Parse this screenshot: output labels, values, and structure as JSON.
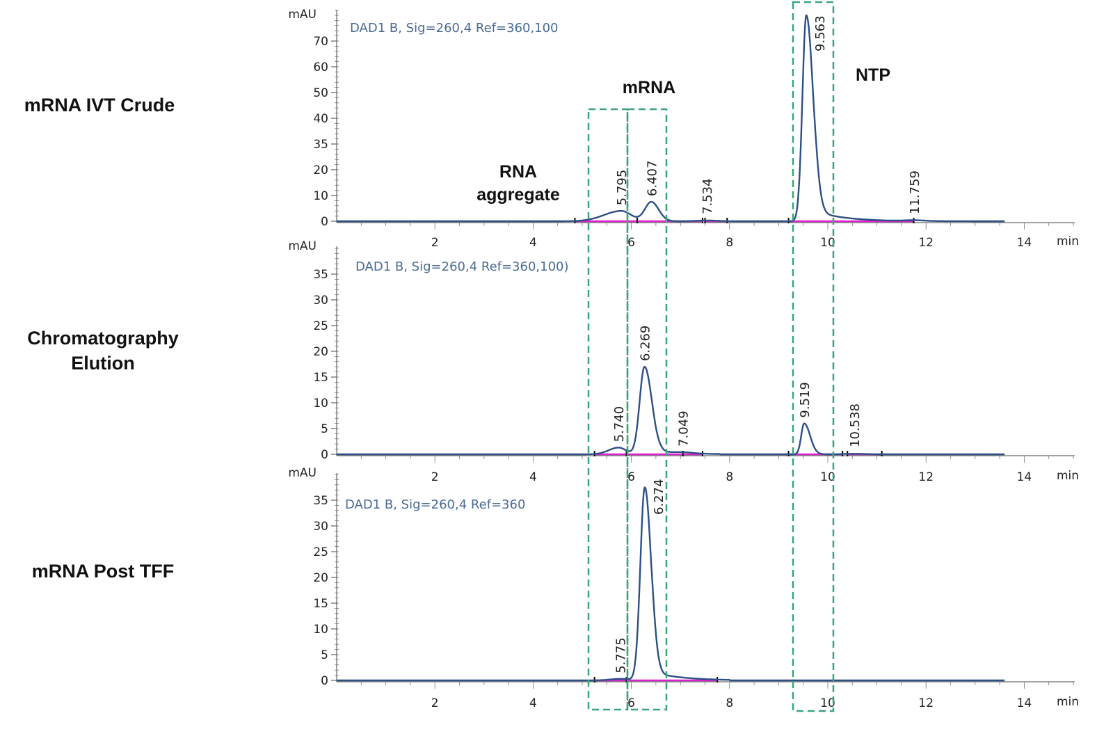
{
  "colors": {
    "trace": "#2c4f86",
    "baseline": "#e020d0",
    "box": "#3aa57a",
    "signal_text": "#4a6a96"
  },
  "annotations": {
    "rna_aggregate_1": "RNA",
    "rna_aggregate_2": "aggregate",
    "mrna": "mRNA",
    "ntp": "NTP"
  },
  "chart_data": [
    {
      "type": "line",
      "title": "mRNA IVT Crude",
      "signal": "DAD1 B, Sig=260,4 Ref=360,100",
      "ylabel": "mAU",
      "xlabel": "min",
      "xticks": [
        "2",
        "4",
        "6",
        "8",
        "10",
        "12",
        "14"
      ],
      "yticks": [
        "0",
        "10",
        "20",
        "35",
        "40",
        "50",
        "60",
        "70"
      ],
      "xlim": [
        0,
        15
      ],
      "peaks": [
        {
          "rt": 5.795,
          "height": 4,
          "sigma_left": 0.35,
          "sigma_right": 0.2
        },
        {
          "rt": 6.407,
          "height": 7.5,
          "sigma_left": 0.13,
          "sigma_right": 0.15
        },
        {
          "rt": 7.534,
          "height": 0.3,
          "sigma_left": 0.2,
          "sigma_right": 0.2
        },
        {
          "rt": 9.563,
          "height": 80,
          "sigma_left": 0.08,
          "sigma_right": 0.14
        },
        {
          "rt": 11.759,
          "height": 0.3,
          "sigma_left": 0.2,
          "sigma_right": 0.2
        }
      ],
      "tail": {
        "start": 9.7,
        "end": 13.6,
        "height": 4.5
      },
      "baselines": [
        [
          4.85,
          6.12
        ],
        [
          6.12,
          7.45
        ],
        [
          7.5,
          7.95
        ],
        [
          9.2,
          11.75
        ]
      ]
    },
    {
      "type": "line",
      "title": "Chromatography Elution",
      "signal": "DAD1 B, Sig=260,4 Ref=360,100)",
      "ylabel": "mAU",
      "xlabel": "min",
      "xticks": [
        "2",
        "4",
        "6",
        "8",
        "10",
        "12",
        "14"
      ],
      "yticks": [
        "0",
        "5",
        "10",
        "15",
        "20",
        "25",
        "30",
        "35"
      ],
      "xlim": [
        0,
        15
      ],
      "peaks": [
        {
          "rt": 5.74,
          "height": 1.3,
          "sigma_left": 0.2,
          "sigma_right": 0.15
        },
        {
          "rt": 6.269,
          "height": 17,
          "sigma_left": 0.1,
          "sigma_right": 0.15
        },
        {
          "rt": 7.049,
          "height": 0.2,
          "sigma_left": 0.2,
          "sigma_right": 0.2
        },
        {
          "rt": 9.519,
          "height": 6,
          "sigma_left": 0.06,
          "sigma_right": 0.12
        },
        {
          "rt": 10.538,
          "height": 0.1,
          "sigma_left": 0.2,
          "sigma_right": 0.2
        }
      ],
      "tail": {
        "start": 6.5,
        "end": 7.8,
        "height": 0.6
      },
      "baselines": [
        [
          5.25,
          5.9
        ],
        [
          5.9,
          7.05
        ],
        [
          7.05,
          7.45
        ],
        [
          9.2,
          10.3
        ],
        [
          10.4,
          11.1
        ]
      ]
    },
    {
      "type": "line",
      "title": "mRNA Post TFF",
      "signal": "DAD1 B, Sig=260,4 Ref=360",
      "ylabel": "mAU",
      "xlabel": "min",
      "xticks": [
        "2",
        "4",
        "6",
        "8",
        "10",
        "12",
        "14"
      ],
      "yticks": [
        "0",
        "5",
        "10",
        "15",
        "20",
        "25",
        "30",
        "35"
      ],
      "xlim": [
        0,
        15
      ],
      "peaks": [
        {
          "rt": 5.775,
          "height": 0.3,
          "sigma_left": 0.2,
          "sigma_right": 0.2
        },
        {
          "rt": 6.274,
          "height": 37.5,
          "sigma_left": 0.09,
          "sigma_right": 0.13
        }
      ],
      "tail": {
        "start": 6.4,
        "end": 8.0,
        "height": 1.8
      },
      "baselines": [
        [
          5.25,
          5.9
        ],
        [
          5.9,
          7.75
        ]
      ]
    }
  ]
}
